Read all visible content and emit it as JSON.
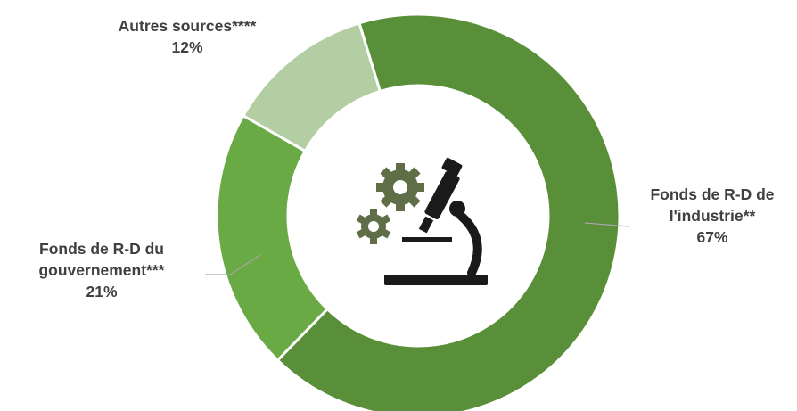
{
  "chart_data": {
    "type": "pie",
    "donut": true,
    "categories": [
      "Fonds de R-D de l'industrie**",
      "Fonds de R-D du gouvernement***",
      "Autres sources****"
    ],
    "values": [
      67,
      21,
      12
    ],
    "value_labels": [
      "67%",
      "21%",
      "12%"
    ],
    "label_lines": [
      [
        "Fonds de R-D de",
        "l'industrie**"
      ],
      [
        "Fonds de R-D du",
        "gouvernement***"
      ],
      [
        "Autres sources****"
      ]
    ],
    "colors": [
      "#5a8f3a",
      "#6aaa45",
      "#b4cea4"
    ],
    "center_icon": "microscope-gears-icon",
    "legend": "none"
  }
}
